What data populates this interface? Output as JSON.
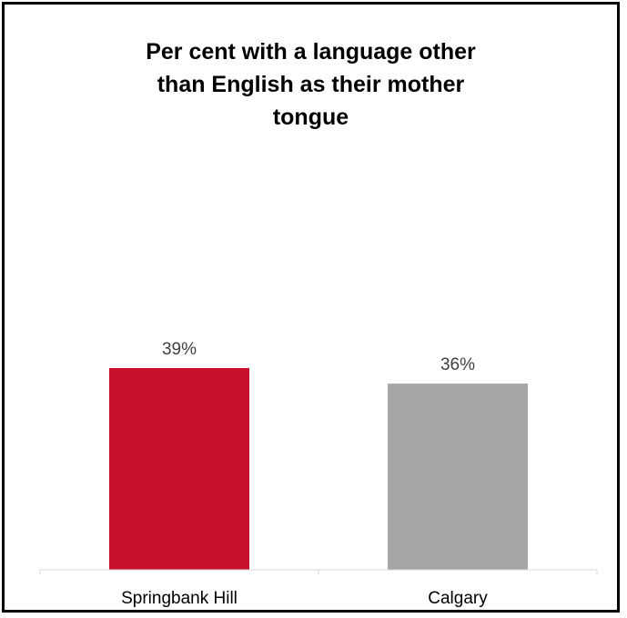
{
  "chart_data": {
    "type": "bar",
    "title": "Per cent with a language other than English as their mother tongue",
    "title_lines": [
      "Per cent with a language other",
      "than English as their mother",
      "tongue"
    ],
    "categories": [
      "Springbank Hill",
      "Calgary"
    ],
    "values": [
      39,
      36
    ],
    "value_labels": [
      "39%",
      "36%"
    ],
    "colors": [
      "#c8102e",
      "#a6a6a6"
    ],
    "ylim": [
      0,
      39
    ],
    "xlabel": "",
    "ylabel": "",
    "grid": false,
    "legend": "none"
  }
}
